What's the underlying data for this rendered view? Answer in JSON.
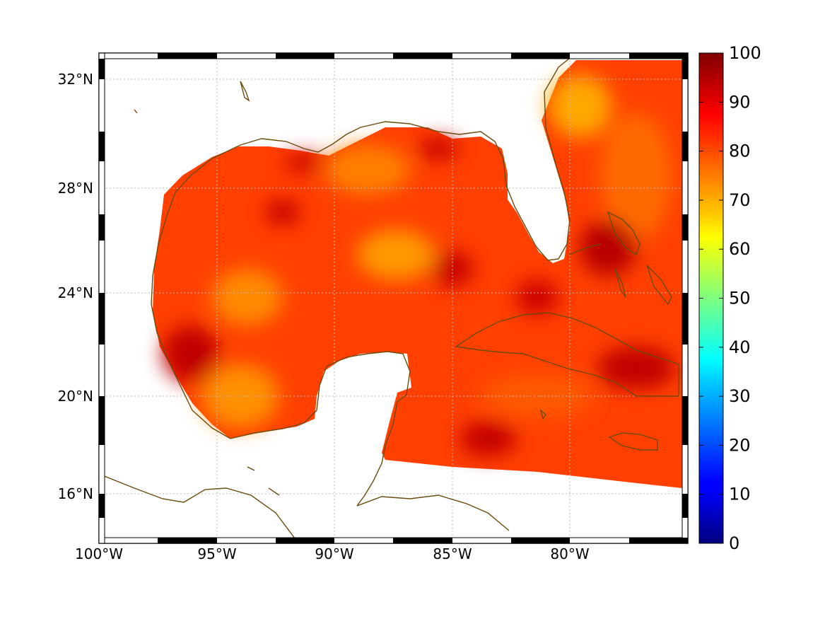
{
  "map": {
    "lon_range": [
      -100,
      -75
    ],
    "lat_range": [
      14,
      33
    ],
    "gridlines": true,
    "lon_ticks": [
      {
        "value": -100,
        "label": "100°W"
      },
      {
        "value": -95,
        "label": "95°W"
      },
      {
        "value": -90,
        "label": "90°W"
      },
      {
        "value": -85,
        "label": "85°W"
      },
      {
        "value": -80,
        "label": "80°W"
      }
    ],
    "lat_ticks": [
      {
        "value": 16,
        "label": "16°N"
      },
      {
        "value": 20,
        "label": "20°N"
      },
      {
        "value": 24,
        "label": "24°N"
      },
      {
        "value": 28,
        "label": "28°N"
      },
      {
        "value": 32,
        "label": "32°N"
      }
    ],
    "coast_color": "#6b4a0e",
    "gridline_color": "#bbbbbb"
  },
  "colorbar": {
    "min": 0,
    "max": 100,
    "colormap": "jet",
    "tick_labels": [
      "0",
      "10",
      "20",
      "30",
      "40",
      "50",
      "60",
      "70",
      "80",
      "90",
      "100"
    ]
  },
  "field": {
    "typical_range": [
      70,
      95
    ],
    "dominant_color": "#ff3a00"
  }
}
